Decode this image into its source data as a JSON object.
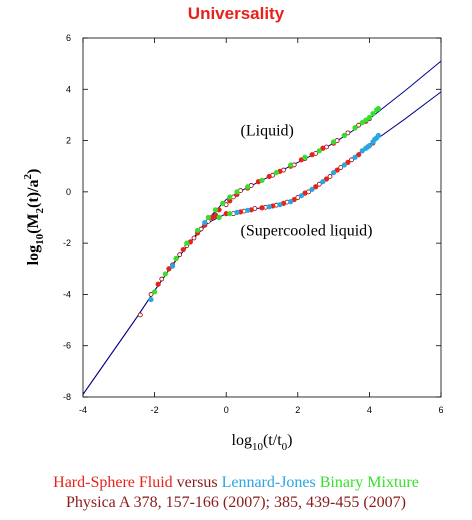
{
  "title": "Universality",
  "colors": {
    "title": "#e8221b",
    "hs": "#e8221b",
    "lj": "#2aa7e0",
    "bm": "#35e02b",
    "citation": "#8b1a1a",
    "fit_line": "#00008b",
    "open_marker": "#8b0000"
  },
  "footer": {
    "hs": "Hard-Sphere Fluid",
    "versus": "versus",
    "lj": "Lennard-Jones",
    "bm": "Binary Mixture",
    "citation": "Physica A 378, 157-166 (2007); 385, 439-455 (2007)"
  },
  "chart_data": {
    "type": "scatter",
    "xlabel": {
      "base": "log",
      "base_sub": "10",
      "arg": "(t/t",
      "arg_sub": "0",
      "close": ")"
    },
    "ylabel": {
      "base": "log",
      "base_sub": "10",
      "m": "(M",
      "m_sub": "2",
      "t": "(t)/a",
      "a_sup": "2",
      "close": ")"
    },
    "xlim": [
      -4,
      6
    ],
    "ylim": [
      -8,
      6
    ],
    "xticks": [
      -4,
      -2,
      0,
      2,
      4,
      6
    ],
    "yticks": [
      -8,
      -6,
      -4,
      -2,
      0,
      2,
      4,
      6
    ],
    "annotations": [
      {
        "text": "(Liquid)",
        "x": 0.4,
        "y": 2.2
      },
      {
        "text": "(Supercooled liquid)",
        "x": 0.4,
        "y": -1.7
      }
    ],
    "lines": [
      {
        "name": "liquid",
        "points": [
          [
            -4,
            -7.9
          ],
          [
            -2.5,
            -4.9
          ],
          [
            -2,
            -3.85
          ],
          [
            -1.5,
            -2.85
          ],
          [
            -1,
            -1.95
          ],
          [
            -0.5,
            -1.05
          ],
          [
            0,
            -0.3
          ],
          [
            0.5,
            0.1
          ],
          [
            1,
            0.45
          ],
          [
            1.5,
            0.8
          ],
          [
            2,
            1.15
          ],
          [
            2.5,
            1.5
          ],
          [
            3,
            1.9
          ],
          [
            3.5,
            2.35
          ],
          [
            4,
            2.85
          ],
          [
            5,
            3.95
          ],
          [
            6,
            5.1
          ]
        ]
      },
      {
        "name": "supercooled",
        "points": [
          [
            -4,
            -7.9
          ],
          [
            -2.5,
            -4.9
          ],
          [
            -2,
            -3.85
          ],
          [
            -1.5,
            -2.85
          ],
          [
            -1,
            -1.95
          ],
          [
            -0.5,
            -1.2
          ],
          [
            0,
            -0.85
          ],
          [
            0.5,
            -0.72
          ],
          [
            1,
            -0.62
          ],
          [
            1.5,
            -0.5
          ],
          [
            2,
            -0.22
          ],
          [
            2.5,
            0.2
          ],
          [
            3,
            0.72
          ],
          [
            3.5,
            1.25
          ],
          [
            4,
            1.85
          ],
          [
            5,
            2.85
          ],
          [
            6,
            3.9
          ]
        ]
      }
    ],
    "series": [
      {
        "marker": "open",
        "points": [
          [
            -2.4,
            -4.8
          ],
          [
            -2.1,
            -4.0
          ],
          [
            -1.8,
            -3.4
          ],
          [
            -1.5,
            -2.85
          ],
          [
            -1.3,
            -2.45
          ],
          [
            -1.1,
            -2.1
          ],
          [
            -0.9,
            -1.8
          ],
          [
            -0.7,
            -1.45
          ],
          [
            -0.5,
            -1.15
          ],
          [
            -0.3,
            -0.9
          ],
          [
            0,
            -0.5
          ],
          [
            0.2,
            -0.2
          ],
          [
            0.4,
            0.05
          ],
          [
            0.7,
            0.25
          ],
          [
            1,
            0.45
          ],
          [
            1.3,
            0.65
          ],
          [
            1.6,
            0.85
          ],
          [
            1.9,
            1.05
          ],
          [
            2.2,
            1.3
          ],
          [
            2.5,
            1.5
          ],
          [
            2.8,
            1.75
          ],
          [
            3.1,
            2.0
          ],
          [
            3.4,
            2.3
          ],
          [
            3.7,
            2.6
          ],
          [
            4.0,
            2.85
          ],
          [
            0.2,
            -0.85
          ],
          [
            0.5,
            -0.75
          ],
          [
            0.8,
            -0.65
          ],
          [
            1.1,
            -0.6
          ],
          [
            1.4,
            -0.52
          ],
          [
            1.7,
            -0.4
          ],
          [
            2.0,
            -0.22
          ],
          [
            2.3,
            0.0
          ],
          [
            2.6,
            0.3
          ],
          [
            2.9,
            0.6
          ],
          [
            3.2,
            0.95
          ],
          [
            3.5,
            1.25
          ],
          [
            3.8,
            1.6
          ],
          [
            4.1,
            1.9
          ]
        ]
      },
      {
        "name": "Hard-Sphere Fluid",
        "color": "hs",
        "points": [
          [
            -1.9,
            -3.6
          ],
          [
            -1.6,
            -3.0
          ],
          [
            -1.4,
            -2.6
          ],
          [
            -1.2,
            -2.25
          ],
          [
            -1.0,
            -1.95
          ],
          [
            -0.8,
            -1.6
          ],
          [
            -0.6,
            -1.3
          ],
          [
            -0.4,
            -1.0
          ],
          [
            -0.2,
            -0.7
          ],
          [
            0.1,
            -0.35
          ],
          [
            0.3,
            -0.1
          ],
          [
            0.6,
            0.15
          ],
          [
            0.9,
            0.4
          ],
          [
            1.2,
            0.6
          ],
          [
            1.5,
            0.8
          ],
          [
            1.8,
            1.0
          ],
          [
            2.1,
            1.25
          ],
          [
            2.4,
            1.45
          ],
          [
            2.7,
            1.7
          ],
          [
            3.0,
            1.9
          ],
          [
            3.3,
            2.2
          ],
          [
            3.6,
            2.5
          ],
          [
            3.9,
            2.75
          ],
          [
            -0.3,
            -0.95
          ],
          [
            0.0,
            -0.85
          ],
          [
            0.4,
            -0.78
          ],
          [
            0.7,
            -0.7
          ],
          [
            1.0,
            -0.62
          ],
          [
            1.3,
            -0.55
          ],
          [
            1.6,
            -0.45
          ],
          [
            1.9,
            -0.3
          ],
          [
            2.2,
            -0.05
          ],
          [
            2.5,
            0.2
          ],
          [
            2.8,
            0.5
          ],
          [
            3.1,
            0.85
          ],
          [
            3.4,
            1.15
          ],
          [
            3.7,
            1.45
          ],
          [
            4.0,
            1.8
          ]
        ]
      },
      {
        "name": "Lennard-Jones",
        "color": "lj",
        "points": [
          [
            -2.1,
            -4.2
          ],
          [
            -1.5,
            -2.9
          ],
          [
            -0.6,
            -1.2
          ],
          [
            0.3,
            -0.8
          ],
          [
            0.6,
            -0.72
          ],
          [
            1.2,
            -0.58
          ],
          [
            1.5,
            -0.5
          ],
          [
            1.8,
            -0.38
          ],
          [
            2.1,
            -0.15
          ],
          [
            2.4,
            0.1
          ],
          [
            2.7,
            0.4
          ],
          [
            3.0,
            0.75
          ],
          [
            3.3,
            1.05
          ],
          [
            3.6,
            1.35
          ],
          [
            3.8,
            1.6
          ],
          [
            3.9,
            1.7
          ],
          [
            4.0,
            1.8
          ],
          [
            4.1,
            1.95
          ],
          [
            4.2,
            2.1
          ],
          [
            4.25,
            2.2
          ],
          [
            4.15,
            2.05
          ],
          [
            3.95,
            1.75
          ]
        ]
      },
      {
        "name": "Binary Mixture",
        "color": "bm",
        "points": [
          [
            -2.0,
            -3.9
          ],
          [
            -1.7,
            -3.2
          ],
          [
            -1.4,
            -2.6
          ],
          [
            -1.1,
            -2.0
          ],
          [
            -0.8,
            -1.5
          ],
          [
            -0.5,
            -1.0
          ],
          [
            -0.3,
            -0.7
          ],
          [
            -0.1,
            -0.45
          ],
          [
            0.1,
            -0.2
          ],
          [
            0.3,
            0.0
          ],
          [
            0.6,
            0.2
          ],
          [
            1.0,
            0.45
          ],
          [
            1.4,
            0.75
          ],
          [
            1.8,
            1.05
          ],
          [
            2.2,
            1.35
          ],
          [
            2.6,
            1.6
          ],
          [
            3.0,
            1.95
          ],
          [
            3.3,
            2.2
          ],
          [
            3.6,
            2.5
          ],
          [
            3.8,
            2.7
          ],
          [
            3.9,
            2.8
          ],
          [
            4.0,
            2.9
          ],
          [
            4.1,
            3.05
          ],
          [
            4.2,
            3.2
          ],
          [
            4.25,
            3.25
          ],
          [
            -0.2,
            -1.0
          ],
          [
            0.1,
            -0.85
          ]
        ]
      }
    ]
  }
}
